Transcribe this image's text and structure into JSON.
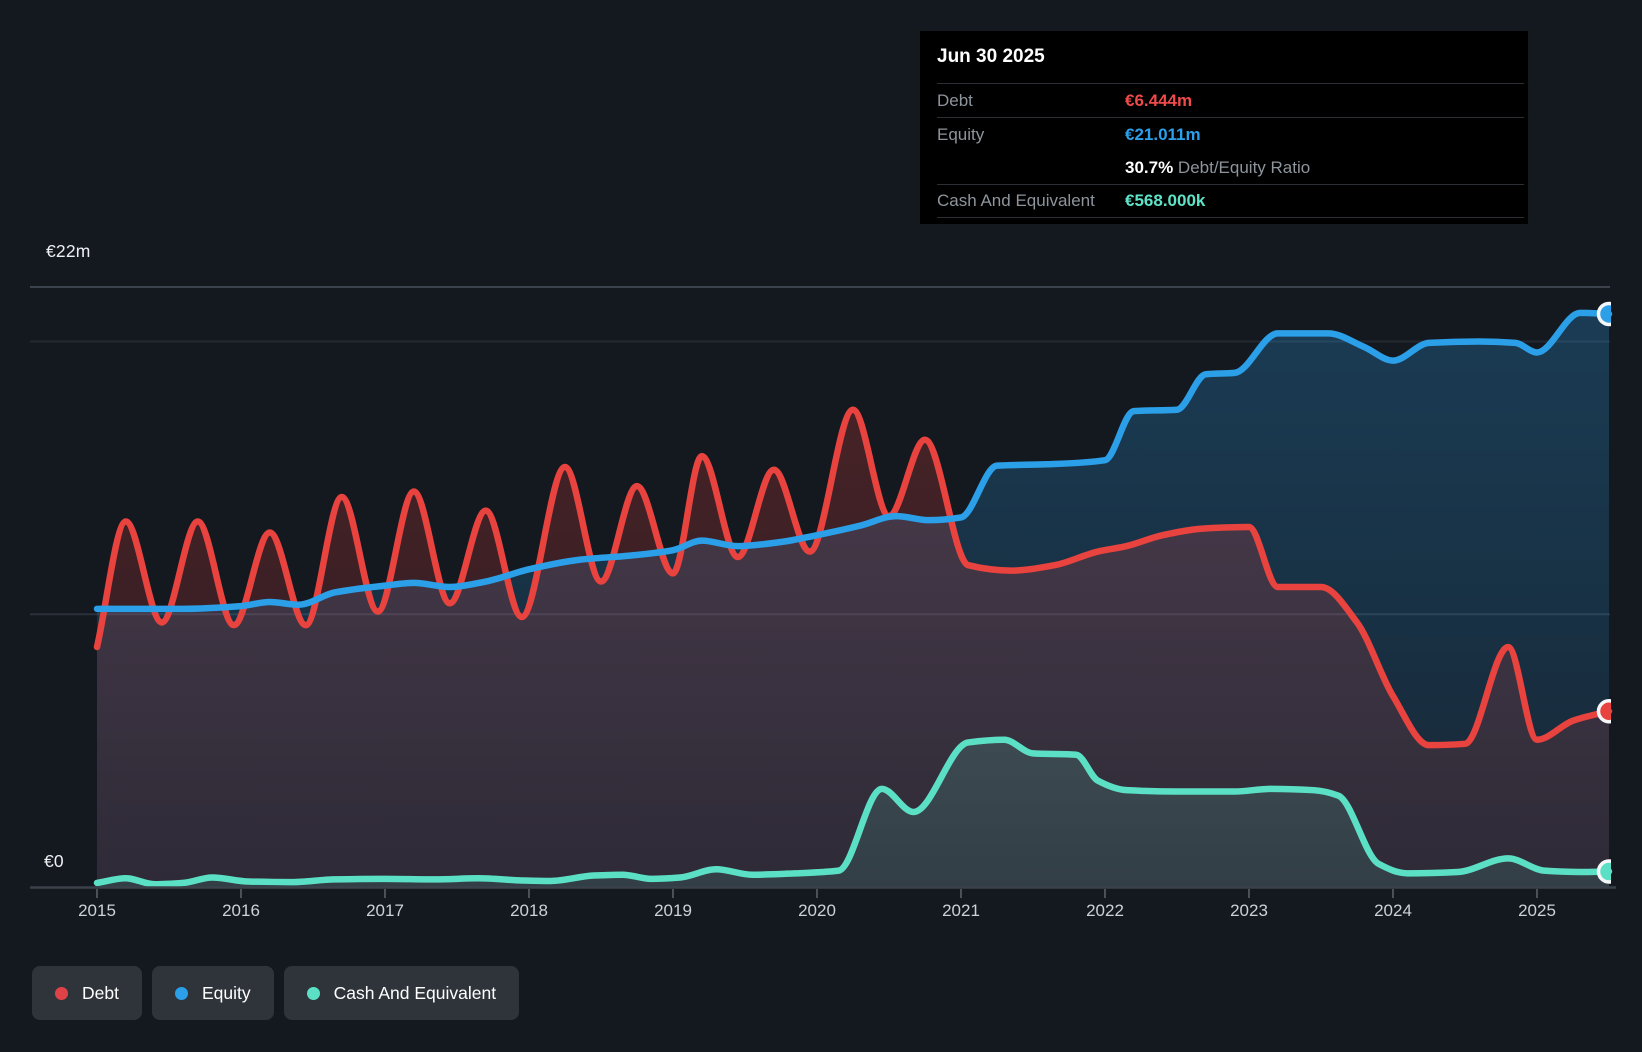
{
  "tooltip": {
    "date": "Jun 30 2025",
    "debt_label": "Debt",
    "debt_value": "€6.444m",
    "equity_label": "Equity",
    "equity_value": "€21.011m",
    "ratio_value": "30.7%",
    "ratio_label": " Debt/Equity Ratio",
    "cash_label": "Cash And Equivalent",
    "cash_value": "€568.000k"
  },
  "legend": {
    "items": [
      {
        "label": "Debt",
        "color": "#df4348"
      },
      {
        "label": "Equity",
        "color": "#2b9fe8"
      },
      {
        "label": "Cash And Equivalent",
        "color": "#5ce0c5"
      }
    ]
  },
  "colors": {
    "background": "#14181f",
    "debt": "#e8433e",
    "equity": "#2b9fe8",
    "cash": "#5ce0c5",
    "debt_value_text": "#f04a4a",
    "equity_value_text": "#2ba0ea",
    "cash_value_text": "#5fe3c8"
  },
  "chart_data": {
    "type": "area",
    "x_axis": {
      "ticks": [
        2015,
        2016,
        2017,
        2018,
        2019,
        2020,
        2021,
        2022,
        2023,
        2024,
        2025
      ],
      "range": [
        2015,
        2025.5
      ]
    },
    "y_axis": {
      "unit": "€m",
      "max": 22,
      "top_label": "€22m",
      "zero_label": "€0",
      "gridlines": [
        22,
        20,
        10,
        0
      ]
    },
    "series": [
      {
        "name": "Debt",
        "color": "#e8433e",
        "end_value_label": "€6.444m",
        "points": [
          [
            2015.0,
            8.8
          ],
          [
            2015.2,
            13.4
          ],
          [
            2015.45,
            9.7
          ],
          [
            2015.7,
            13.4
          ],
          [
            2015.95,
            9.6
          ],
          [
            2016.2,
            13.0
          ],
          [
            2016.45,
            9.6
          ],
          [
            2016.7,
            14.3
          ],
          [
            2016.95,
            10.1
          ],
          [
            2017.2,
            14.5
          ],
          [
            2017.45,
            10.4
          ],
          [
            2017.7,
            13.8
          ],
          [
            2017.95,
            9.9
          ],
          [
            2018.25,
            15.4
          ],
          [
            2018.5,
            11.2
          ],
          [
            2018.75,
            14.7
          ],
          [
            2019.0,
            11.5
          ],
          [
            2019.2,
            15.8
          ],
          [
            2019.45,
            12.1
          ],
          [
            2019.7,
            15.3
          ],
          [
            2019.95,
            12.3
          ],
          [
            2020.25,
            17.5
          ],
          [
            2020.5,
            13.6
          ],
          [
            2020.75,
            16.4
          ],
          [
            2021.05,
            11.8
          ],
          [
            2021.35,
            11.6
          ],
          [
            2021.65,
            11.8
          ],
          [
            2021.95,
            12.3
          ],
          [
            2022.15,
            12.5
          ],
          [
            2022.4,
            12.9
          ],
          [
            2022.7,
            13.15
          ],
          [
            2023.0,
            13.2
          ],
          [
            2023.2,
            11.0
          ],
          [
            2023.5,
            11.0
          ],
          [
            2023.75,
            9.7
          ],
          [
            2024.0,
            7.0
          ],
          [
            2024.25,
            5.2
          ],
          [
            2024.5,
            5.25
          ],
          [
            2024.8,
            8.8
          ],
          [
            2025.0,
            5.4
          ],
          [
            2025.25,
            6.1
          ],
          [
            2025.5,
            6.444
          ]
        ]
      },
      {
        "name": "Equity",
        "color": "#2b9fe8",
        "end_value_label": "€21.011m",
        "points": [
          [
            2015.0,
            10.2
          ],
          [
            2015.6,
            10.2
          ],
          [
            2016.0,
            10.3
          ],
          [
            2016.2,
            10.45
          ],
          [
            2016.4,
            10.35
          ],
          [
            2016.65,
            10.8
          ],
          [
            2017.0,
            11.05
          ],
          [
            2017.2,
            11.15
          ],
          [
            2017.45,
            11.0
          ],
          [
            2017.7,
            11.2
          ],
          [
            2018.0,
            11.65
          ],
          [
            2018.35,
            12.0
          ],
          [
            2018.7,
            12.15
          ],
          [
            2019.0,
            12.35
          ],
          [
            2019.2,
            12.7
          ],
          [
            2019.45,
            12.5
          ],
          [
            2019.75,
            12.65
          ],
          [
            2020.0,
            12.9
          ],
          [
            2020.3,
            13.25
          ],
          [
            2020.55,
            13.6
          ],
          [
            2020.78,
            13.45
          ],
          [
            2021.0,
            13.55
          ],
          [
            2021.25,
            15.45
          ],
          [
            2021.6,
            15.5
          ],
          [
            2022.0,
            15.65
          ],
          [
            2022.2,
            17.45
          ],
          [
            2022.5,
            17.5
          ],
          [
            2022.7,
            18.8
          ],
          [
            2022.9,
            18.85
          ],
          [
            2023.2,
            20.3
          ],
          [
            2023.55,
            20.3
          ],
          [
            2023.8,
            19.8
          ],
          [
            2024.0,
            19.3
          ],
          [
            2024.25,
            19.95
          ],
          [
            2024.6,
            20.0
          ],
          [
            2024.85,
            19.95
          ],
          [
            2025.0,
            19.6
          ],
          [
            2025.3,
            21.05
          ],
          [
            2025.5,
            21.011
          ]
        ]
      },
      {
        "name": "Cash And Equivalent",
        "color": "#5ce0c5",
        "end_value_label": "€568.000k",
        "points": [
          [
            2015.0,
            0.15
          ],
          [
            2015.2,
            0.32
          ],
          [
            2015.4,
            0.1
          ],
          [
            2015.6,
            0.15
          ],
          [
            2015.8,
            0.35
          ],
          [
            2016.05,
            0.2
          ],
          [
            2016.35,
            0.18
          ],
          [
            2016.65,
            0.28
          ],
          [
            2017.0,
            0.3
          ],
          [
            2017.35,
            0.28
          ],
          [
            2017.65,
            0.32
          ],
          [
            2017.95,
            0.24
          ],
          [
            2018.15,
            0.22
          ],
          [
            2018.45,
            0.42
          ],
          [
            2018.65,
            0.45
          ],
          [
            2018.85,
            0.3
          ],
          [
            2019.05,
            0.35
          ],
          [
            2019.3,
            0.65
          ],
          [
            2019.55,
            0.45
          ],
          [
            2019.85,
            0.5
          ],
          [
            2020.15,
            0.6
          ],
          [
            2020.45,
            3.6
          ],
          [
            2020.67,
            2.75
          ],
          [
            2021.05,
            5.3
          ],
          [
            2021.3,
            5.4
          ],
          [
            2021.5,
            4.9
          ],
          [
            2021.8,
            4.85
          ],
          [
            2021.95,
            3.9
          ],
          [
            2022.15,
            3.55
          ],
          [
            2022.5,
            3.5
          ],
          [
            2022.9,
            3.5
          ],
          [
            2023.15,
            3.6
          ],
          [
            2023.45,
            3.55
          ],
          [
            2023.62,
            3.35
          ],
          [
            2023.9,
            0.85
          ],
          [
            2024.1,
            0.5
          ],
          [
            2024.45,
            0.55
          ],
          [
            2024.8,
            1.05
          ],
          [
            2025.05,
            0.6
          ],
          [
            2025.3,
            0.55
          ],
          [
            2025.5,
            0.568
          ]
        ]
      }
    ]
  }
}
